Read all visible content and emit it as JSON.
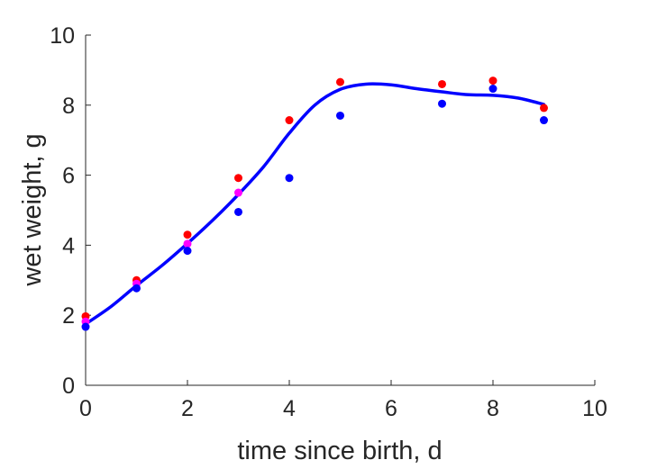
{
  "chart_data": {
    "type": "scatter",
    "title": "",
    "xlabel": "time since birth, d",
    "ylabel": "wet weight, g",
    "xlim": [
      0,
      10
    ],
    "ylim": [
      0,
      10
    ],
    "xticks": [
      "0",
      "2",
      "4",
      "6",
      "8",
      "10"
    ],
    "yticks": [
      "0",
      "2",
      "4",
      "6",
      "8",
      "10"
    ],
    "grid": false,
    "box": false,
    "series": [
      {
        "color": "#ff0000",
        "marker": "dot",
        "points": [
          [
            0,
            1.97
          ],
          [
            1,
            3.0
          ],
          [
            2,
            4.3
          ],
          [
            3,
            5.92
          ],
          [
            4,
            7.57
          ],
          [
            5,
            8.66
          ],
          [
            7,
            8.6
          ],
          [
            8,
            8.7
          ],
          [
            9,
            7.92
          ]
        ]
      },
      {
        "color": "#ff00ff",
        "marker": "dot",
        "points": [
          [
            0,
            1.82
          ],
          [
            1,
            2.9
          ],
          [
            2,
            4.04
          ],
          [
            3,
            5.5
          ]
        ]
      },
      {
        "color": "#0000ff",
        "marker": "dot",
        "points": [
          [
            0,
            1.67
          ],
          [
            1,
            2.77
          ],
          [
            2,
            3.84
          ],
          [
            3,
            4.95
          ],
          [
            4,
            5.92
          ],
          [
            5,
            7.7
          ],
          [
            7,
            8.04
          ],
          [
            8,
            8.47
          ],
          [
            9,
            7.57
          ]
        ]
      },
      {
        "color": "#0000ff",
        "marker": "line",
        "points": [
          [
            0,
            1.75
          ],
          [
            0.5,
            2.25
          ],
          [
            1,
            2.85
          ],
          [
            1.5,
            3.42
          ],
          [
            2,
            4.05
          ],
          [
            2.5,
            4.72
          ],
          [
            3,
            5.45
          ],
          [
            3.5,
            6.25
          ],
          [
            4,
            7.2
          ],
          [
            4.5,
            8.0
          ],
          [
            5,
            8.45
          ],
          [
            5.5,
            8.6
          ],
          [
            6,
            8.58
          ],
          [
            6.5,
            8.47
          ],
          [
            7,
            8.38
          ],
          [
            7.5,
            8.3
          ],
          [
            8,
            8.28
          ],
          [
            8.5,
            8.2
          ],
          [
            9,
            8.02
          ]
        ]
      }
    ]
  }
}
